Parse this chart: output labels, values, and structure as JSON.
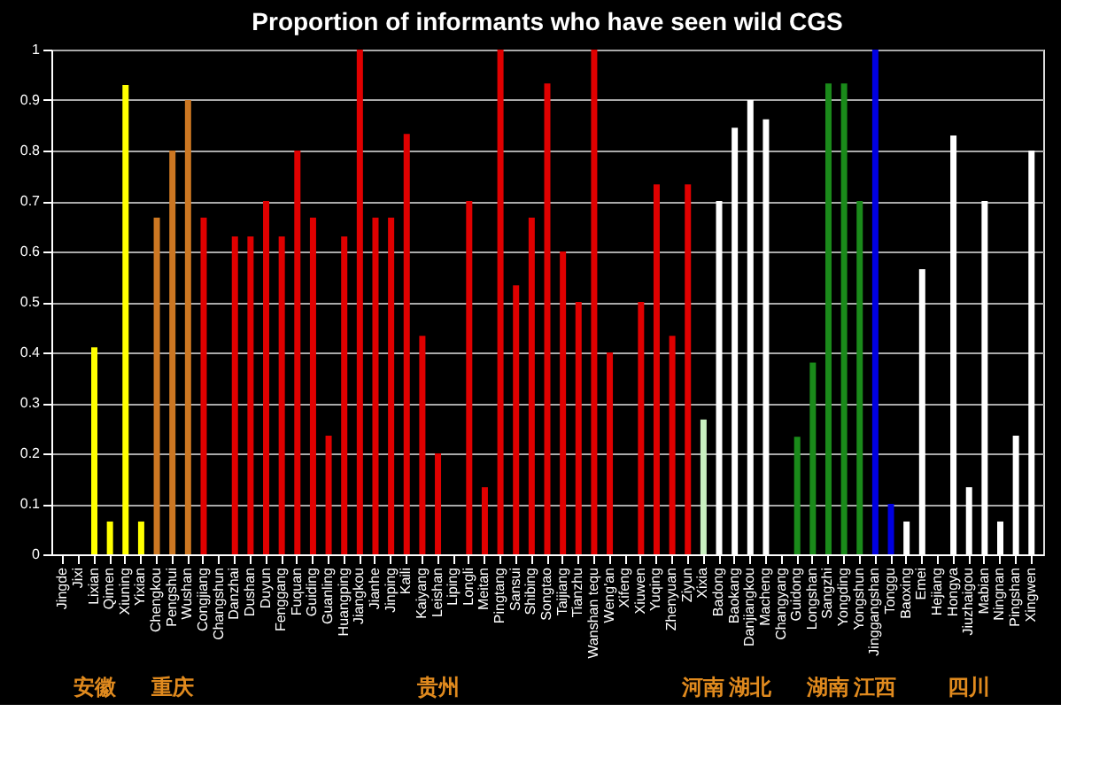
{
  "chart_data": {
    "type": "bar",
    "title": "Proportion of informants  who have seen wild CGS",
    "categories": [
      "Jingde",
      "Jixi",
      "Lixian",
      "Qimen",
      "Xiuning",
      "Yixian",
      "Chengkou",
      "Pengshui",
      "Wushan",
      "Congjiang",
      "Changshun",
      "Danzhai",
      "Dushan",
      "Duyun",
      "Fenggang",
      "Fuquan",
      "Guiding",
      "Guanling",
      "Huangping",
      "Jiangkou",
      "Jianhe",
      "Jinping",
      "Kaili",
      "Kaiyang",
      "Leishan",
      "Liping",
      "Longli",
      "Meitan",
      "Pingtang",
      "Sansui",
      "Shibing",
      "Songtao",
      "Taijiang",
      "Tianzhu",
      "Wanshan tequ",
      "Weng'an",
      "Xifeng",
      "Xiuwen",
      "Yuqing",
      "Zhenyuan",
      "Ziyun",
      "Xixia",
      "Badong",
      "Baokang",
      "Danjiangkou",
      "Macheng",
      "Changyang",
      "Guidong",
      "Longshan",
      "Sangzhi",
      "Yongding",
      "Yongshun",
      "Jinggangshan",
      "Tonggu",
      "Baoxing",
      "Emei",
      "Hejiang",
      "Hongya",
      "Jiuzhaigou",
      "Mabian",
      "Ningnan",
      "Pingshan",
      "Xingwen"
    ],
    "values": [
      0,
      0,
      0.41,
      0.065,
      0.93,
      0.065,
      0.667,
      0.8,
      0.9,
      0.667,
      0,
      0.63,
      0.63,
      0.7,
      0.63,
      0.8,
      0.667,
      0.235,
      0.63,
      1,
      0.667,
      0.667,
      0.833,
      0.433,
      0.2,
      0,
      0.7,
      0.133,
      1,
      0.533,
      0.667,
      0.933,
      0.6,
      0.5,
      1,
      0.4,
      0,
      0.5,
      0.733,
      0.433,
      0.733,
      0.267,
      0.7,
      0.845,
      0.9,
      0.862,
      0,
      0.233,
      0.38,
      0.933,
      0.933,
      0.7,
      1,
      0.1,
      0.065,
      0.565,
      0,
      0.83,
      0.133,
      0.7,
      0.065,
      0.235,
      0.8
    ],
    "colors": [
      "#ffff00",
      "#ffff00",
      "#ffff00",
      "#ffff00",
      "#ffff00",
      "#ffff00",
      "#cc7722",
      "#cc7722",
      "#cc7722",
      "#e00000",
      "#e00000",
      "#e00000",
      "#e00000",
      "#e00000",
      "#e00000",
      "#e00000",
      "#e00000",
      "#e00000",
      "#e00000",
      "#e00000",
      "#e00000",
      "#e00000",
      "#e00000",
      "#e00000",
      "#e00000",
      "#e00000",
      "#e00000",
      "#e00000",
      "#e00000",
      "#e00000",
      "#e00000",
      "#e00000",
      "#e00000",
      "#e00000",
      "#e00000",
      "#e00000",
      "#e00000",
      "#e00000",
      "#e00000",
      "#e00000",
      "#e00000",
      "#c8f0c0",
      "#ffffff",
      "#ffffff",
      "#ffffff",
      "#ffffff",
      "#ffffff",
      "#1a8a1a",
      "#1a8a1a",
      "#1a8a1a",
      "#1a8a1a",
      "#1a8a1a",
      "#0000e0",
      "#0000e0",
      "#ffffff",
      "#ffffff",
      "#ffffff",
      "#ffffff",
      "#ffffff",
      "#ffffff",
      "#ffffff",
      "#ffffff",
      "#ffffff"
    ],
    "ylim": [
      0,
      1
    ],
    "yticks": [
      0,
      0.1,
      0.2,
      0.3,
      0.4,
      0.5,
      0.6,
      0.7,
      0.8,
      0.9,
      1
    ],
    "grid": "y",
    "annotations": [
      "安徽",
      "重庆",
      "贵州",
      "河南",
      "湖北",
      "湖南",
      "江西",
      "四川"
    ]
  }
}
